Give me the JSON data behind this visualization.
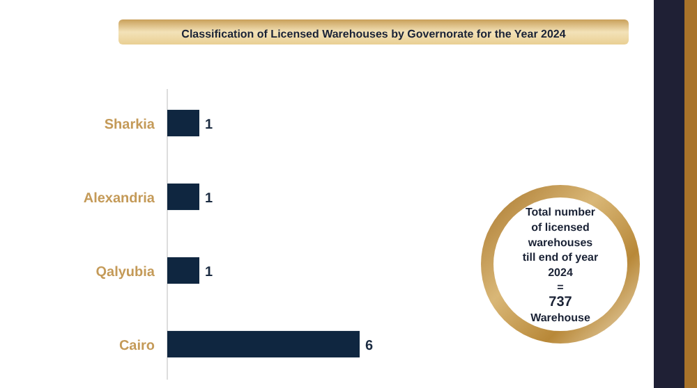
{
  "chart_data": {
    "type": "bar",
    "orientation": "horizontal",
    "title": "Classification of Licensed Warehouses by Governorate for the Year 2024",
    "categories": [
      "Sharkia",
      "Alexandria",
      "Qalyubia",
      "Cairo"
    ],
    "values": [
      1,
      1,
      1,
      6
    ],
    "color": "#0f2640",
    "xlim": [
      0,
      6
    ],
    "data_labels": true,
    "tick_labels": "y",
    "annotations": [
      "Total number\nof licensed\nwarehouses\ntill end of year\n2024\n=\n737\nWarehouse"
    ]
  }
}
